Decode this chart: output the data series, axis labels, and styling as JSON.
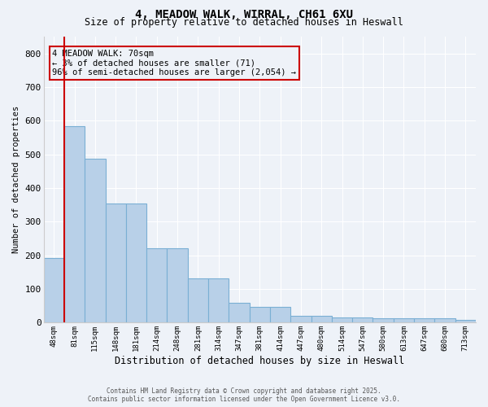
{
  "title_line1": "4, MEADOW WALK, WIRRAL, CH61 6XU",
  "title_line2": "Size of property relative to detached houses in Heswall",
  "xlabel": "Distribution of detached houses by size in Heswall",
  "ylabel": "Number of detached properties",
  "categories": [
    "48sqm",
    "81sqm",
    "115sqm",
    "148sqm",
    "181sqm",
    "214sqm",
    "248sqm",
    "281sqm",
    "314sqm",
    "347sqm",
    "381sqm",
    "414sqm",
    "447sqm",
    "480sqm",
    "514sqm",
    "547sqm",
    "580sqm",
    "613sqm",
    "647sqm",
    "680sqm",
    "713sqm"
  ],
  "values": [
    193,
    585,
    487,
    355,
    355,
    220,
    220,
    132,
    132,
    60,
    48,
    48,
    20,
    20,
    15,
    15,
    13,
    13,
    13,
    13,
    9
  ],
  "bar_color": "#b8d0e8",
  "bar_edge_color": "#7aafd4",
  "vline_color": "#cc0000",
  "vline_x_index": 0.5,
  "annotation_text": "4 MEADOW WALK: 70sqm\n← 3% of detached houses are smaller (71)\n96% of semi-detached houses are larger (2,054) →",
  "annotation_box_color": "#cc0000",
  "bg_color": "#eef2f8",
  "grid_color": "#ffffff",
  "ylim": [
    0,
    850
  ],
  "yticks": [
    0,
    100,
    200,
    300,
    400,
    500,
    600,
    700,
    800
  ],
  "footer_line1": "Contains HM Land Registry data © Crown copyright and database right 2025.",
  "footer_line2": "Contains public sector information licensed under the Open Government Licence v3.0."
}
